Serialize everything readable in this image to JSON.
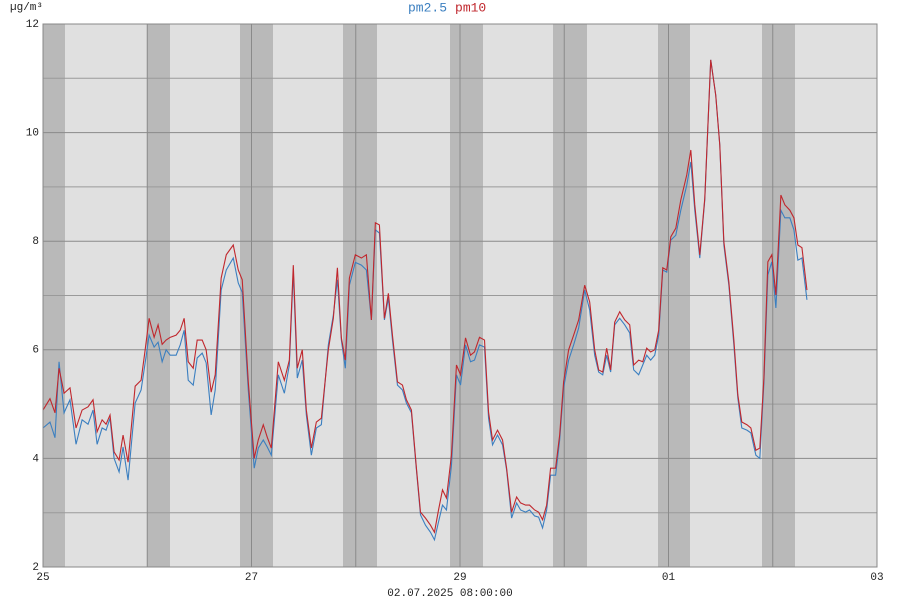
{
  "chart_data": {
    "type": "line",
    "y_unit": "µg/m³",
    "footer": "02.07.2025 08:00:00",
    "x": [
      0,
      0.067,
      0.115,
      0.154,
      0.202,
      0.259,
      0.317,
      0.375,
      0.432,
      0.48,
      0.519,
      0.567,
      0.605,
      0.643,
      0.682,
      0.73,
      0.768,
      0.816,
      0.884,
      0.941,
      0.98,
      1.018,
      1.066,
      1.104,
      1.143,
      1.181,
      1.22,
      1.277,
      1.316,
      1.354,
      1.393,
      1.441,
      1.479,
      1.527,
      1.565,
      1.613,
      1.652,
      1.709,
      1.758,
      1.825,
      1.873,
      1.911,
      1.969,
      2.026,
      2.065,
      2.113,
      2.151,
      2.19,
      2.257,
      2.315,
      2.363,
      2.401,
      2.439,
      2.487,
      2.526,
      2.574,
      2.622,
      2.67,
      2.737,
      2.785,
      2.824,
      2.862,
      2.9,
      2.939,
      2.996,
      3.054,
      3.102,
      3.15,
      3.188,
      3.227,
      3.275,
      3.313,
      3.352,
      3.4,
      3.448,
      3.486,
      3.534,
      3.582,
      3.621,
      3.669,
      3.717,
      3.755,
      3.794,
      3.832,
      3.87,
      3.918,
      3.966,
      4.005,
      4.053,
      4.101,
      4.139,
      4.187,
      4.235,
      4.274,
      4.312,
      4.36,
      4.408,
      4.447,
      4.495,
      4.543,
      4.581,
      4.629,
      4.667,
      4.716,
      4.754,
      4.792,
      4.831,
      4.869,
      4.917,
      4.956,
      4.994,
      5.042,
      5.09,
      5.138,
      5.196,
      5.244,
      5.292,
      5.33,
      5.369,
      5.407,
      5.445,
      5.484,
      5.532,
      5.58,
      5.628,
      5.666,
      5.714,
      5.753,
      5.791,
      5.829,
      5.868,
      5.906,
      5.945,
      5.983,
      6.022,
      6.07,
      6.118,
      6.175,
      6.214,
      6.252,
      6.3,
      6.348,
      6.405,
      6.453,
      6.492,
      6.531,
      6.579,
      6.627,
      6.665,
      6.703,
      6.752,
      6.79,
      6.838,
      6.876,
      6.915,
      6.953,
      6.991,
      7.03,
      7.078,
      7.116,
      7.164,
      7.203,
      7.241,
      7.28,
      7.328
    ],
    "series": [
      {
        "name": "pm2.5",
        "color": "#3b7fc0",
        "values": [
          4.56,
          4.67,
          4.38,
          5.78,
          4.84,
          5.08,
          4.26,
          4.71,
          4.63,
          4.89,
          4.26,
          4.56,
          4.52,
          4.74,
          4.0,
          3.75,
          4.21,
          3.6,
          5.02,
          5.26,
          5.76,
          6.27,
          6.05,
          6.14,
          5.78,
          6.0,
          5.9,
          5.9,
          6.09,
          6.36,
          5.44,
          5.35,
          5.85,
          5.94,
          5.76,
          4.8,
          5.26,
          7.1,
          7.47,
          7.69,
          7.23,
          7.06,
          5.26,
          3.82,
          4.19,
          4.34,
          4.21,
          4.06,
          5.54,
          5.2,
          5.72,
          7.43,
          5.48,
          5.81,
          4.8,
          4.06,
          4.56,
          4.62,
          6.09,
          6.64,
          7.29,
          6.18,
          5.66,
          7.19,
          7.61,
          7.56,
          7.47,
          6.55,
          8.21,
          8.15,
          6.55,
          6.95,
          6.18,
          5.35,
          5.26,
          5.02,
          4.84,
          3.79,
          2.96,
          2.77,
          2.64,
          2.5,
          2.83,
          3.14,
          3.05,
          3.87,
          5.54,
          5.35,
          6.09,
          5.78,
          5.81,
          6.09,
          6.05,
          4.74,
          4.25,
          4.43,
          4.25,
          3.79,
          2.9,
          3.18,
          3.05,
          3.01,
          3.05,
          2.94,
          2.92,
          2.72,
          3.05,
          3.69,
          3.69,
          4.34,
          5.3,
          5.81,
          6.09,
          6.4,
          7.1,
          6.73,
          5.9,
          5.59,
          5.54,
          5.9,
          5.59,
          6.46,
          6.58,
          6.46,
          6.31,
          5.63,
          5.54,
          5.72,
          5.9,
          5.81,
          5.9,
          6.27,
          7.47,
          7.43,
          8.02,
          8.11,
          8.57,
          9.03,
          9.46,
          8.57,
          7.69,
          8.76,
          11.34,
          10.69,
          9.77,
          7.93,
          7.19,
          6.09,
          5.11,
          4.56,
          4.52,
          4.47,
          4.06,
          4.0,
          5.39,
          7.38,
          7.62,
          6.77,
          8.57,
          8.43,
          8.43,
          8.21,
          7.65,
          7.69,
          6.92
        ]
      },
      {
        "name": "pm10",
        "color": "#c0272d",
        "values": [
          4.89,
          5.1,
          4.84,
          5.66,
          5.2,
          5.3,
          4.56,
          4.89,
          4.95,
          5.08,
          4.49,
          4.71,
          4.63,
          4.8,
          4.12,
          3.97,
          4.43,
          3.93,
          5.33,
          5.44,
          6.0,
          6.58,
          6.23,
          6.46,
          6.1,
          6.18,
          6.23,
          6.27,
          6.36,
          6.58,
          5.78,
          5.66,
          6.18,
          6.18,
          6.0,
          5.22,
          5.54,
          7.32,
          7.75,
          7.93,
          7.47,
          7.29,
          5.41,
          4.0,
          4.34,
          4.62,
          4.39,
          4.19,
          5.78,
          5.44,
          5.81,
          7.56,
          5.66,
          6.0,
          4.89,
          4.19,
          4.67,
          4.74,
          6.0,
          6.58,
          7.51,
          6.22,
          5.81,
          7.32,
          7.75,
          7.69,
          7.75,
          6.55,
          8.34,
          8.3,
          6.58,
          7.04,
          6.27,
          5.41,
          5.35,
          5.08,
          4.89,
          3.82,
          3.01,
          2.9,
          2.77,
          2.64,
          3.05,
          3.42,
          3.27,
          4.06,
          5.72,
          5.54,
          6.22,
          5.9,
          5.96,
          6.23,
          6.18,
          4.85,
          4.34,
          4.52,
          4.34,
          3.82,
          3.01,
          3.29,
          3.18,
          3.14,
          3.14,
          3.05,
          3.01,
          2.87,
          3.14,
          3.82,
          3.82,
          4.43,
          5.41,
          6.0,
          6.27,
          6.55,
          7.19,
          6.88,
          6.0,
          5.63,
          5.59,
          6.03,
          5.63,
          6.51,
          6.7,
          6.55,
          6.46,
          5.72,
          5.81,
          5.78,
          6.03,
          5.96,
          6.0,
          6.36,
          7.51,
          7.47,
          8.08,
          8.24,
          8.76,
          9.22,
          9.68,
          8.67,
          7.75,
          8.79,
          11.34,
          10.69,
          9.77,
          7.99,
          7.25,
          6.18,
          5.17,
          4.67,
          4.62,
          4.56,
          4.15,
          4.19,
          5.48,
          7.62,
          7.75,
          7.01,
          8.85,
          8.67,
          8.57,
          8.43,
          7.93,
          7.88,
          7.1
        ]
      }
    ],
    "xlim": [
      0,
      8
    ],
    "xticks": [
      {
        "value": 0,
        "label": "25"
      },
      {
        "value": 2,
        "label": "27"
      },
      {
        "value": 4,
        "label": "29"
      },
      {
        "value": 6,
        "label": "01"
      },
      {
        "value": 8,
        "label": "03"
      }
    ],
    "xminorticks": [
      1,
      3,
      5,
      7
    ],
    "ylim": [
      2,
      12
    ],
    "yticks": [
      2,
      4,
      6,
      8,
      10,
      12
    ],
    "yminorticks": [
      3,
      5,
      7,
      9,
      11
    ],
    "grid": true
  }
}
